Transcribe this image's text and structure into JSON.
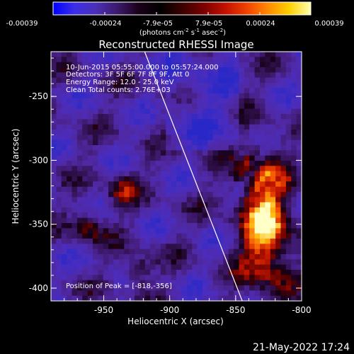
{
  "colorbar": {
    "tick_labels": [
      "-0.00039",
      "-0.00024",
      "-7.9e-05",
      "7.9e-05",
      "0.00024",
      "0.00039"
    ],
    "units_prefix": "(photons cm",
    "units_exp1": "-2",
    "units_mid": " s",
    "units_exp2": "-1",
    "units_mid2": " asec",
    "units_exp3": "-2",
    "units_suffix": ")",
    "colors": [
      "#0000ff",
      "#3b2fe6",
      "#4b2fb5",
      "#3c1a6a",
      "#1a0018",
      "#000000",
      "#3a0000",
      "#7a0000",
      "#c01000",
      "#f04000",
      "#ff8a00",
      "#ffd000",
      "#ffffb0"
    ]
  },
  "image": {
    "title": "Reconstructed RHESSI Image",
    "info_lines": [
      "10-Jun-2015 05:55:00.000 to 05:57:24.000",
      "Detectors: 3F 5F 6F 7F 8F 9F, Att 0",
      "Energy Range: 12.0 - 25.0 keV",
      "Clean      Total counts: 2.76E+03"
    ],
    "peak_text": "Position of Peak = [-818,-356]",
    "x_label": "Heliocentric X (arcsec)",
    "y_label": "Heliocentric Y (arcsec)",
    "x_ticks": [
      "-950",
      "-900",
      "-850",
      "-800"
    ],
    "y_ticks": [
      "-250",
      "-300",
      "-350",
      "-400"
    ],
    "x_range": [
      -990,
      -800
    ],
    "y_range": [
      -410,
      -215
    ],
    "limb_line": [
      [
        -919,
        -215
      ],
      [
        -845,
        -410
      ]
    ],
    "peak_position": [
      -818,
      -356
    ]
  },
  "footer": {
    "timestamp": "21-May-2022 17:24"
  }
}
